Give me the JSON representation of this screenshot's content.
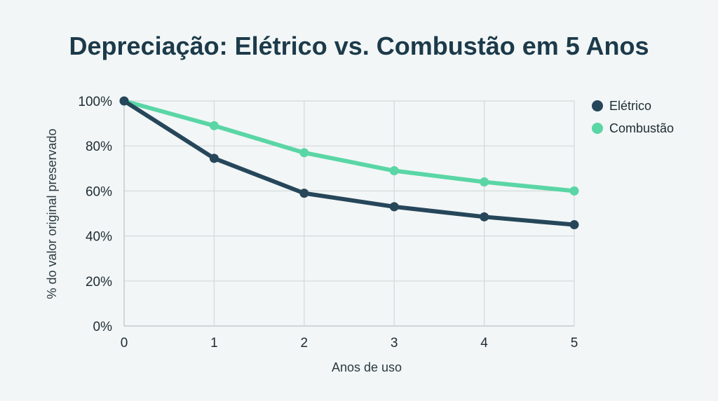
{
  "chart_data": {
    "type": "line",
    "title": "Depreciação: Elétrico vs. Combustão em 5 Anos",
    "xlabel": "Anos de uso",
    "ylabel": "% do valor original preservado",
    "x": [
      0,
      1,
      2,
      3,
      4,
      5
    ],
    "x_tick_labels": [
      "0",
      "1",
      "2",
      "3",
      "4",
      "5"
    ],
    "ylim": [
      0,
      100
    ],
    "xlim": [
      0,
      5
    ],
    "y_ticks": [
      0,
      20,
      40,
      60,
      80,
      100
    ],
    "y_tick_labels": [
      "0%",
      "20%",
      "40%",
      "60%",
      "80%",
      "100%"
    ],
    "grid": true,
    "legend_position": "right",
    "series": [
      {
        "name": "Elétrico",
        "color": "#26465a",
        "values": [
          100,
          74.5,
          59,
          53,
          48.5,
          45
        ]
      },
      {
        "name": "Combustão",
        "color": "#5ad6a6",
        "values": [
          100,
          89,
          77,
          69,
          64,
          60
        ]
      }
    ]
  }
}
